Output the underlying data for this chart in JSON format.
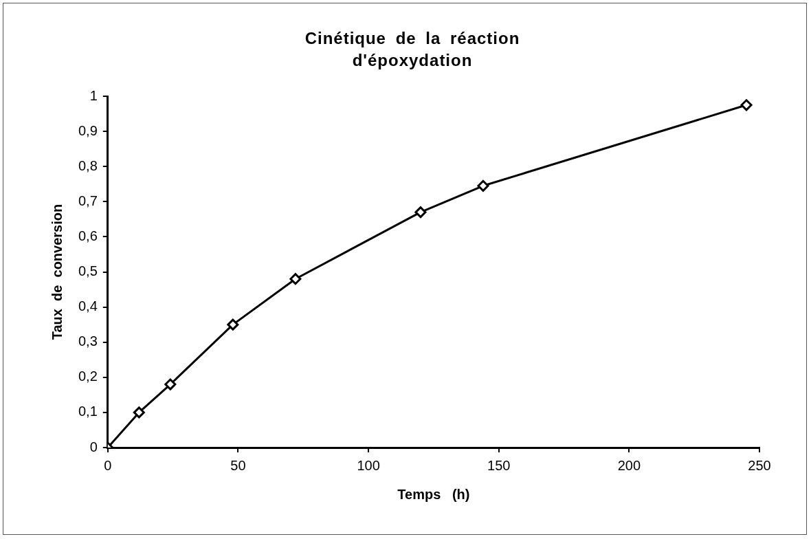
{
  "chart_data": {
    "type": "line",
    "title": "Cinétique de la réaction d'époxydation",
    "xlabel": "Temps   (h)",
    "ylabel": "Taux  de  conversion",
    "x": [
      0,
      12,
      24,
      48,
      72,
      120,
      144,
      245
    ],
    "series": [
      {
        "color": "#000000",
        "values": [
          0,
          0.1,
          0.18,
          0.35,
          0.48,
          0.67,
          0.745,
          0.975
        ]
      }
    ],
    "xlim": [
      0,
      250
    ],
    "xticks": [
      0,
      50,
      100,
      150,
      200,
      250
    ],
    "ylim": [
      0,
      1
    ],
    "yticks": [
      0,
      {
        "value": 0.1,
        "label": "0,1"
      },
      {
        "value": 0.2,
        "label": "0,2"
      },
      {
        "value": 0.3,
        "label": "0,3"
      },
      {
        "value": 0.4,
        "label": "0,4"
      },
      {
        "value": 0.5,
        "label": "0,5"
      },
      {
        "value": 0.6,
        "label": "0,6"
      },
      {
        "value": 0.7,
        "label": "0,7"
      },
      {
        "value": 0.8,
        "label": "0,8"
      },
      {
        "value": 0.9,
        "label": "0,9"
      },
      1
    ],
    "marker": "diamond",
    "line_style": "solid",
    "grid": false,
    "legend": false
  }
}
